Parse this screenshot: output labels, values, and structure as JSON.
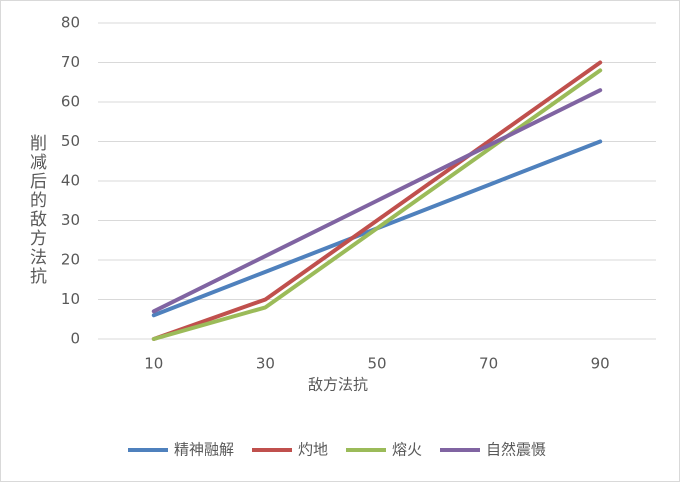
{
  "chart_data": {
    "type": "line",
    "x_label": "敌方法抗",
    "y_label": "削减后的敌方法抗",
    "categories": [
      "10",
      "30",
      "50",
      "70",
      "90"
    ],
    "series": [
      {
        "name": "精神融解",
        "color": "#4f81bd",
        "values": [
          6,
          17,
          28,
          39,
          50
        ]
      },
      {
        "name": "灼地",
        "color": "#c0504d",
        "values": [
          0,
          10,
          30,
          50,
          70
        ]
      },
      {
        "name": "熔火",
        "color": "#9bbb59",
        "values": [
          0,
          8,
          28,
          48,
          68
        ]
      },
      {
        "name": "自然震慑",
        "color": "#8064a2",
        "values": [
          7,
          21,
          35,
          49,
          63
        ]
      }
    ],
    "ylim": [
      0,
      80
    ],
    "yticks": [
      0,
      10,
      20,
      30,
      40,
      50,
      60,
      70,
      80
    ],
    "grid": true,
    "legend": "bottom"
  }
}
